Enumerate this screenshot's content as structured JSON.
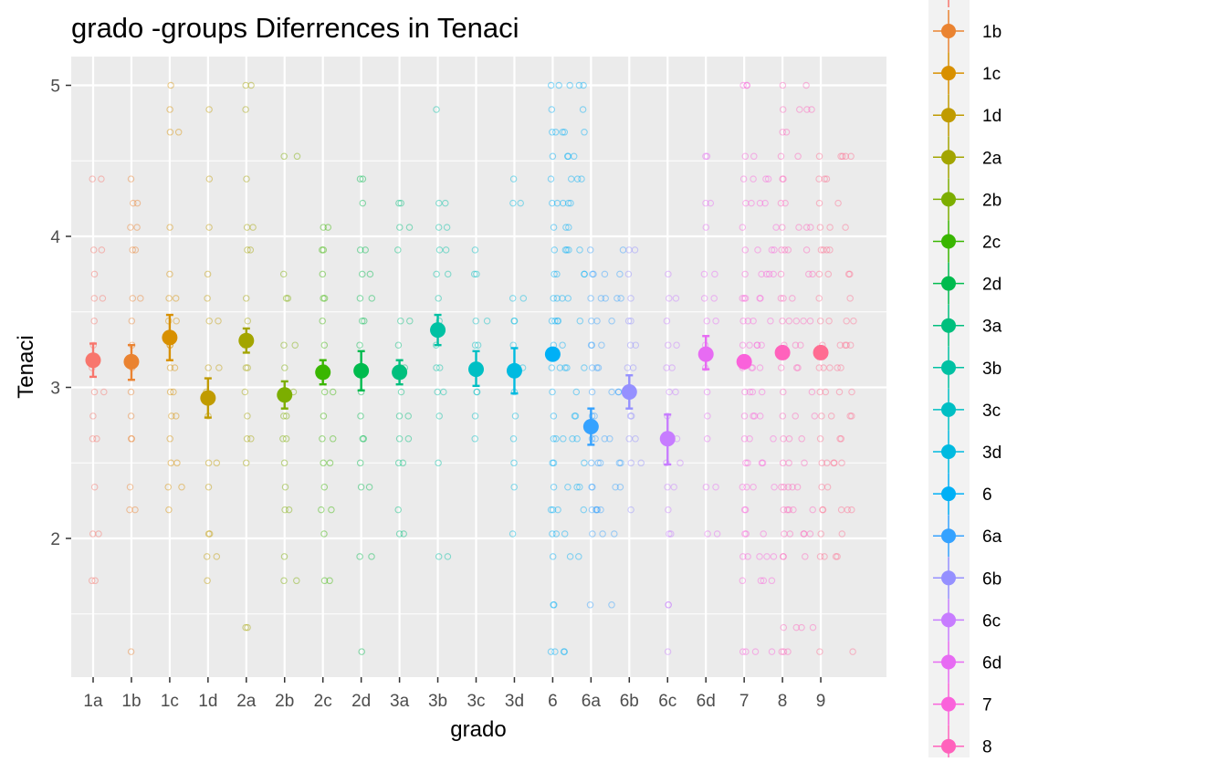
{
  "chart_data": {
    "type": "scatter",
    "title": "grado -groups Diferrences in  Tenaci",
    "xlabel": "grado",
    "ylabel": "Tenaci",
    "categories": [
      "1a",
      "1b",
      "1c",
      "1d",
      "2a",
      "2b",
      "2c",
      "2d",
      "3a",
      "3b",
      "3c",
      "3d",
      "6",
      "6a",
      "6b",
      "6c",
      "6d",
      "7",
      "8",
      "9"
    ],
    "ylim": [
      1.1,
      5.2
    ],
    "yticks": [
      2,
      3,
      4,
      5
    ],
    "grid": true,
    "legend_position": "right",
    "legend_items": [
      "1b",
      "1c",
      "1d",
      "2a",
      "2b",
      "2c",
      "2d",
      "3a",
      "3b",
      "3c",
      "3d",
      "6",
      "6a",
      "6b",
      "6c",
      "6d",
      "7",
      "8"
    ],
    "colors": {
      "1a": "#F8766D",
      "1b": "#EA8331",
      "1c": "#D89000",
      "1d": "#C09B00",
      "2a": "#A3A500",
      "2b": "#7CAE00",
      "2c": "#39B600",
      "2d": "#00BB4E",
      "3a": "#00BF7D",
      "3b": "#00C1A3",
      "3c": "#00BFC4",
      "3d": "#00BAE0",
      "6": "#00B0F6",
      "6a": "#35A2FF",
      "6b": "#9590FF",
      "6c": "#C77CFF",
      "6d": "#E76BF3",
      "7": "#FA62DB",
      "8": "#FF62BC",
      "9": "#FF6C91"
    },
    "group_means": [
      3.18,
      3.17,
      3.33,
      2.93,
      3.31,
      2.95,
      3.1,
      3.11,
      3.1,
      3.38,
      3.12,
      3.11,
      3.22,
      2.74,
      2.97,
      2.66,
      3.22,
      3.17,
      3.23,
      3.23
    ],
    "error_bars": [
      [
        3.07,
        3.29
      ],
      [
        3.05,
        3.28
      ],
      [
        3.18,
        3.48
      ],
      [
        2.8,
        3.06
      ],
      [
        3.23,
        3.39
      ],
      [
        2.86,
        3.04
      ],
      [
        3.02,
        3.18
      ],
      [
        2.98,
        3.24
      ],
      [
        3.02,
        3.18
      ],
      [
        3.28,
        3.48
      ],
      [
        3.01,
        3.24
      ],
      [
        2.96,
        3.26
      ],
      [
        3.2,
        3.24
      ],
      [
        2.62,
        2.86
      ],
      [
        2.86,
        3.08
      ],
      [
        2.49,
        2.82
      ],
      [
        3.12,
        3.34
      ],
      [
        3.15,
        3.19
      ],
      [
        3.19,
        3.27
      ],
      [
        3.19,
        3.27
      ]
    ],
    "jitter_points": [
      {
        "group": "1a",
        "y": [
          4.38,
          3.91,
          3.75,
          3.59,
          3.44,
          3.28,
          3.13,
          2.97,
          2.81,
          2.66,
          2.34,
          2.03,
          1.72
        ]
      },
      {
        "group": "1b",
        "y": [
          4.38,
          4.22,
          4.06,
          3.91,
          3.59,
          3.44,
          3.28,
          3.13,
          2.97,
          2.81,
          2.66,
          2.34,
          2.19,
          1.25
        ]
      },
      {
        "group": "1c",
        "y": [
          5.0,
          4.84,
          4.69,
          4.06,
          3.75,
          3.59,
          3.44,
          3.28,
          3.13,
          2.97,
          2.81,
          2.66,
          2.5,
          2.34,
          2.19
        ]
      },
      {
        "group": "1d",
        "y": [
          4.84,
          4.38,
          4.06,
          3.75,
          3.59,
          3.44,
          3.13,
          2.97,
          2.81,
          2.5,
          2.34,
          2.03,
          1.88,
          1.72
        ]
      },
      {
        "group": "2a",
        "y": [
          5.0,
          4.84,
          4.38,
          4.06,
          3.91,
          3.59,
          3.44,
          3.28,
          3.13,
          2.97,
          2.81,
          2.66,
          2.5,
          1.41
        ]
      },
      {
        "group": "2b",
        "y": [
          4.53,
          3.75,
          3.59,
          3.28,
          3.13,
          2.97,
          2.81,
          2.66,
          2.5,
          2.34,
          2.19,
          1.88,
          1.72
        ]
      },
      {
        "group": "2c",
        "y": [
          4.06,
          3.91,
          3.75,
          3.59,
          3.44,
          3.28,
          3.13,
          2.97,
          2.81,
          2.66,
          2.5,
          2.34,
          2.19,
          2.03,
          1.72
        ]
      },
      {
        "group": "2d",
        "y": [
          4.38,
          4.22,
          3.91,
          3.75,
          3.59,
          3.44,
          3.28,
          3.13,
          2.97,
          2.81,
          2.66,
          2.5,
          2.34,
          1.88,
          1.25
        ]
      },
      {
        "group": "3a",
        "y": [
          4.22,
          4.06,
          3.91,
          3.44,
          3.28,
          3.13,
          2.97,
          2.81,
          2.66,
          2.5,
          2.19,
          2.03
        ]
      },
      {
        "group": "3b",
        "y": [
          4.84,
          4.22,
          4.06,
          3.91,
          3.75,
          3.59,
          3.44,
          3.28,
          3.13,
          2.97,
          2.81,
          2.5,
          1.88
        ]
      },
      {
        "group": "3c",
        "y": [
          3.91,
          3.75,
          3.44,
          3.28,
          3.13,
          2.97,
          2.81,
          2.66
        ]
      },
      {
        "group": "3d",
        "y": [
          4.38,
          4.22,
          3.59,
          3.44,
          3.28,
          3.13,
          2.97,
          2.81,
          2.66,
          2.5,
          2.34,
          2.03
        ]
      },
      {
        "group": "6",
        "y": [
          5.0,
          4.84,
          4.69,
          4.53,
          4.38,
          4.22,
          4.06,
          3.91,
          3.75,
          3.59,
          3.44,
          3.28,
          3.13,
          2.97,
          2.81,
          2.66,
          2.5,
          2.34,
          2.19,
          2.03,
          1.88,
          1.56,
          1.25
        ]
      },
      {
        "group": "6a",
        "y": [
          3.91,
          3.75,
          3.59,
          3.44,
          3.28,
          3.13,
          2.97,
          2.81,
          2.66,
          2.5,
          2.34,
          2.19,
          2.03,
          1.56
        ]
      },
      {
        "group": "6b",
        "y": [
          3.91,
          3.75,
          3.59,
          3.44,
          3.28,
          3.13,
          2.97,
          2.81,
          2.66,
          2.5,
          2.19
        ]
      },
      {
        "group": "6c",
        "y": [
          3.75,
          3.59,
          3.44,
          3.28,
          3.13,
          2.97,
          2.81,
          2.66,
          2.5,
          2.34,
          2.19,
          2.03,
          1.56,
          1.25
        ]
      },
      {
        "group": "6d",
        "y": [
          4.53,
          4.22,
          4.06,
          3.75,
          3.59,
          3.44,
          3.28,
          3.13,
          2.97,
          2.81,
          2.66,
          2.34,
          2.03
        ]
      },
      {
        "group": "7",
        "y": [
          5.0,
          4.53,
          4.38,
          4.22,
          4.06,
          3.91,
          3.75,
          3.59,
          3.44,
          3.28,
          3.13,
          2.97,
          2.81,
          2.66,
          2.5,
          2.34,
          2.19,
          2.03,
          1.88,
          1.72,
          1.25
        ]
      },
      {
        "group": "8",
        "y": [
          5.0,
          4.84,
          4.69,
          4.53,
          4.38,
          4.22,
          4.06,
          3.91,
          3.75,
          3.59,
          3.44,
          3.28,
          3.13,
          2.97,
          2.81,
          2.66,
          2.5,
          2.34,
          2.19,
          2.03,
          1.88,
          1.41,
          1.25
        ]
      },
      {
        "group": "9",
        "y": [
          4.53,
          4.38,
          4.22,
          4.06,
          3.91,
          3.75,
          3.59,
          3.44,
          3.28,
          3.13,
          2.97,
          2.81,
          2.66,
          2.5,
          2.34,
          2.19,
          2.03,
          1.88,
          1.25
        ]
      }
    ]
  }
}
